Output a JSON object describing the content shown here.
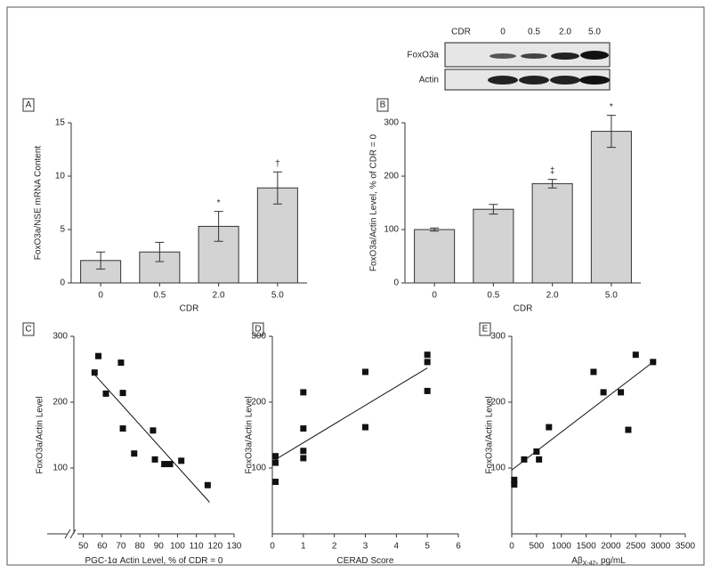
{
  "blot": {
    "header": "CDR",
    "lanes": [
      "0",
      "0.5",
      "2.0",
      "5.0"
    ],
    "rows": [
      "FoxO3a",
      "Actin"
    ]
  },
  "chart_data": [
    {
      "type": "bar",
      "panel": "A",
      "categories": [
        "0",
        "0.5",
        "2.0",
        "5.0"
      ],
      "values": [
        2.1,
        2.9,
        5.3,
        8.9
      ],
      "errors": [
        0.8,
        0.9,
        1.4,
        1.5
      ],
      "bar_annotations": [
        null,
        null,
        "*",
        "†"
      ],
      "color": "#d3d3d3",
      "ylim": [
        0,
        15
      ],
      "yticks": [
        0,
        5,
        10,
        15
      ],
      "xlabel": "CDR",
      "ylabel": "FoxO3a/NSE mRNA Content"
    },
    {
      "type": "bar",
      "panel": "B",
      "categories": [
        "0",
        "0.5",
        "2.0",
        "5.0"
      ],
      "values": [
        100,
        138,
        186,
        284
      ],
      "errors": [
        3,
        9,
        8,
        30
      ],
      "bar_annotations": [
        null,
        null,
        "‡",
        "*"
      ],
      "color": "#d3d3d3",
      "ylim": [
        0,
        300
      ],
      "yticks": [
        0,
        100,
        200,
        300
      ],
      "xlabel": "CDR",
      "ylabel": "FoxO3a/Actin Level, % of CDR = 0"
    },
    {
      "type": "scatter",
      "panel": "C",
      "x": [
        56,
        58,
        62,
        70,
        71,
        71,
        77,
        87,
        88,
        93,
        96,
        102,
        116
      ],
      "y": [
        245,
        270,
        213,
        260,
        214,
        160,
        122,
        157,
        113,
        106,
        106,
        111,
        74
      ],
      "trendline": {
        "x": [
          55,
          117
        ],
        "y": [
          245,
          48
        ]
      },
      "color": "#111111",
      "xlim": [
        45,
        130
      ],
      "xticks": [
        50,
        60,
        70,
        80,
        90,
        100,
        110,
        120,
        130
      ],
      "ylim": [
        0,
        300
      ],
      "yticks": [
        100,
        200,
        300
      ],
      "axis_break": true,
      "xlabel": [
        "PGC-1α Actin Level, % of CDR = 0"
      ],
      "ylabel": "FoxO3a/Actin Level"
    },
    {
      "type": "scatter",
      "panel": "D",
      "x": [
        0.1,
        0.1,
        0.1,
        1,
        1,
        1,
        1,
        3,
        3,
        5,
        5,
        5
      ],
      "y": [
        118,
        108,
        79,
        215,
        160,
        126,
        115,
        246,
        162,
        272,
        261,
        217
      ],
      "trendline": {
        "x": [
          0,
          5
        ],
        "y": [
          110,
          252
        ]
      },
      "color": "#111111",
      "xlim": [
        0,
        6
      ],
      "xticks": [
        0,
        1,
        2,
        3,
        4,
        5,
        6
      ],
      "ylim": [
        0,
        300
      ],
      "yticks": [
        100,
        200,
        300
      ],
      "xlabel": [
        "CERAD Score"
      ],
      "ylabel": "FoxO3a/Actin Level"
    },
    {
      "type": "scatter",
      "panel": "E",
      "x": [
        50,
        50,
        250,
        500,
        550,
        750,
        1650,
        1850,
        2200,
        2350,
        2500,
        2850
      ],
      "y": [
        82,
        75,
        113,
        125,
        113,
        162,
        246,
        215,
        215,
        158,
        272,
        261
      ],
      "trendline": {
        "x": [
          0,
          2850
        ],
        "y": [
          97,
          261
        ]
      },
      "color": "#111111",
      "xlim": [
        0,
        3500
      ],
      "xticks": [
        0,
        500,
        1000,
        1500,
        2000,
        2500,
        3000,
        3500
      ],
      "ylim": [
        0,
        300
      ],
      "yticks": [
        100,
        200,
        300
      ],
      "xlabel": [
        "Aβ",
        "X-42",
        ", pg/mL"
      ],
      "ylabel": "FoxO3a/Actin Level"
    }
  ]
}
